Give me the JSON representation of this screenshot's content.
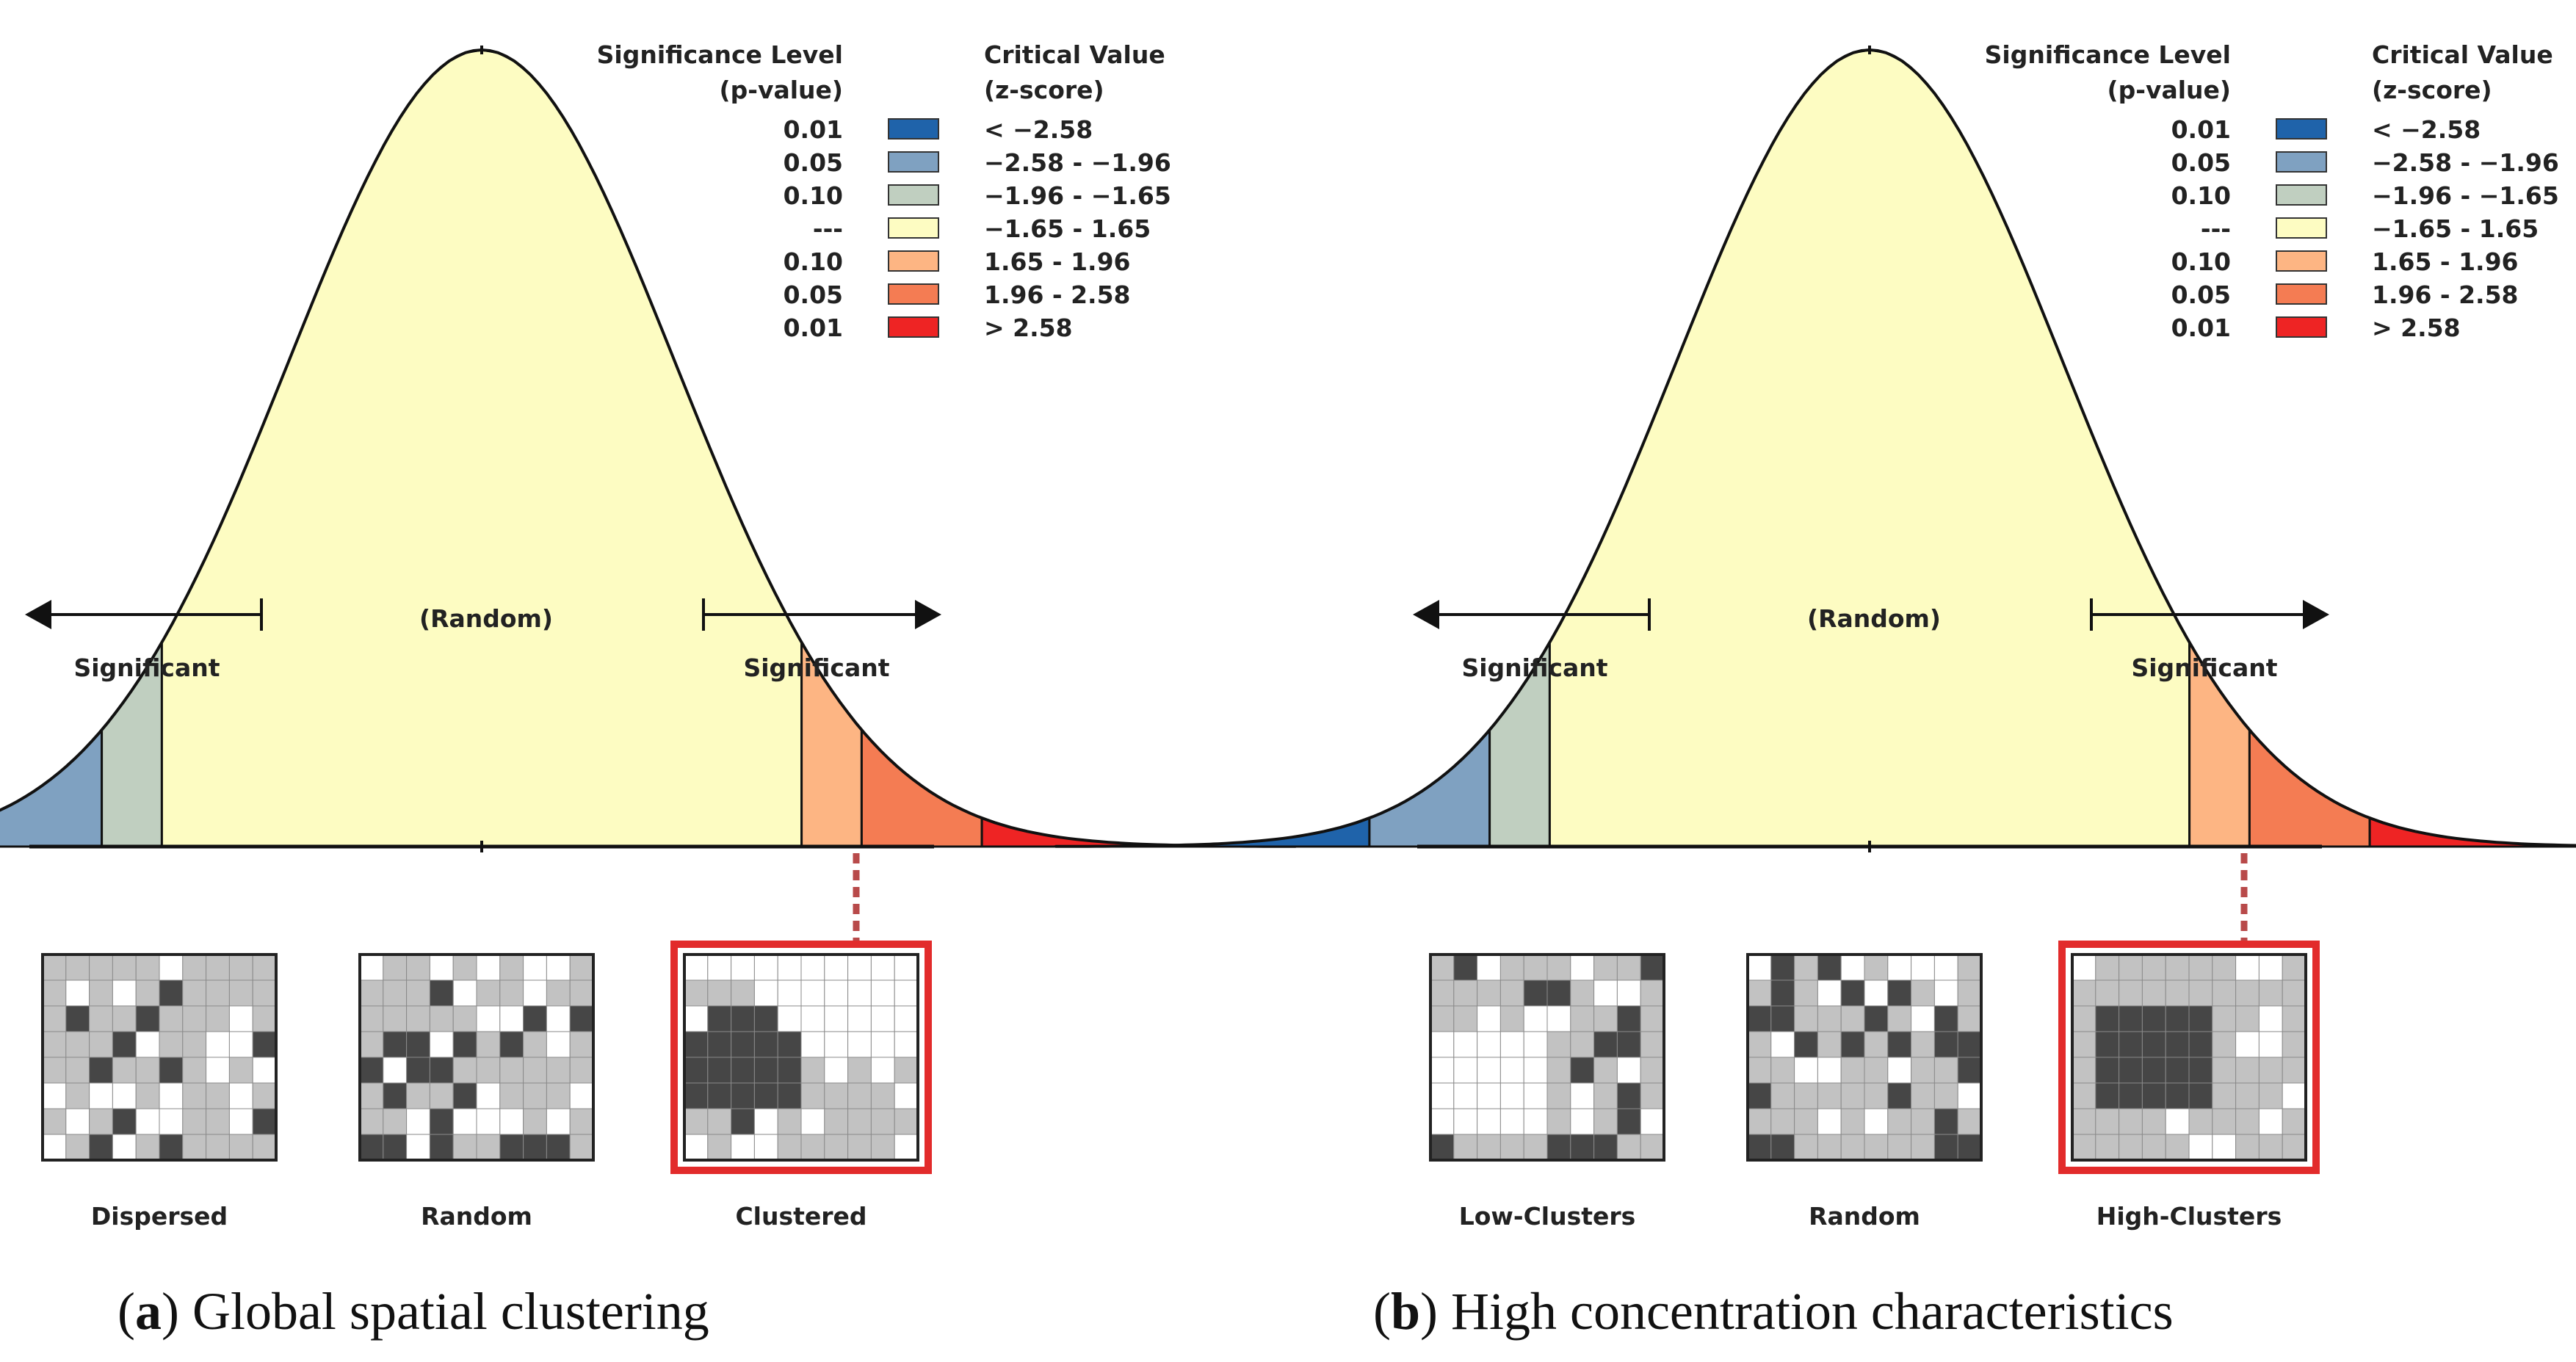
{
  "panels": [
    {
      "id": "a",
      "legend": {
        "p_header": [
          "Significance Level",
          "(p-value)"
        ],
        "z_header": [
          "Critical Value",
          "(z-score)"
        ],
        "rows": [
          {
            "p": "0.01",
            "color": "#1f63aa",
            "z": "< −2.58"
          },
          {
            "p": "0.05",
            "color": "#7fa1c1",
            "z": "−2.58 - −1.96"
          },
          {
            "p": "0.10",
            "color": "#c0cfc0",
            "z": "−1.96 - −1.65"
          },
          {
            "p": "---",
            "color": "#fdfcc2",
            "z": "−1.65 - 1.65"
          },
          {
            "p": "0.10",
            "color": "#fdb583",
            "z": "1.65 - 1.96"
          },
          {
            "p": "0.05",
            "color": "#f47c53",
            "z": "1.96 - 2.58"
          },
          {
            "p": "0.01",
            "color": "#ee2424",
            "z": "> 2.58"
          }
        ]
      },
      "random_label": "(Random)",
      "significant_left": "Significant",
      "significant_right": "Significant",
      "maps": [
        {
          "label": "Dispersed",
          "pattern": "dispersed",
          "highlight": false
        },
        {
          "label": "Random",
          "pattern": "random",
          "highlight": false
        },
        {
          "label": "Clustered",
          "pattern": "clustered",
          "highlight": true
        }
      ],
      "caption_letter": "a",
      "caption_text": "Global spatial clustering"
    },
    {
      "id": "b",
      "legend": {
        "p_header": [
          "Significance Level",
          "(p-value)"
        ],
        "z_header": [
          "Critical Value",
          "(z-score)"
        ],
        "rows": [
          {
            "p": "0.01",
            "color": "#1f63aa",
            "z": "< −2.58"
          },
          {
            "p": "0.05",
            "color": "#7fa1c1",
            "z": "−2.58 - −1.96"
          },
          {
            "p": "0.10",
            "color": "#c0cfc0",
            "z": "−1.96 - −1.65"
          },
          {
            "p": "---",
            "color": "#fdfcc2",
            "z": "−1.65 - 1.65"
          },
          {
            "p": "0.10",
            "color": "#fdb583",
            "z": "1.65 - 1.96"
          },
          {
            "p": "0.05",
            "color": "#f47c53",
            "z": "1.96 - 2.58"
          },
          {
            "p": "0.01",
            "color": "#ee2424",
            "z": "> 2.58"
          }
        ]
      },
      "random_label": "(Random)",
      "significant_left": "Significant",
      "significant_right": "Significant",
      "maps": [
        {
          "label": "Low-Clusters",
          "pattern": "lowclusters",
          "highlight": false
        },
        {
          "label": "Random",
          "pattern": "random",
          "highlight": false
        },
        {
          "label": "High-Clusters",
          "pattern": "highclusters",
          "highlight": true
        }
      ],
      "caption_letter": "b",
      "caption_text": "High concentration characteristics"
    }
  ],
  "colors": {
    "map_dark": "#464646",
    "map_light": "#c2c2c2",
    "map_white": "#ffffff",
    "map_border": "#222222",
    "highlight": "#e22b2b",
    "outline": "#111111"
  },
  "z_breaks": [
    -2.58,
    -1.96,
    -1.65,
    1.65,
    1.96,
    2.58
  ],
  "z_range": [
    -4.2,
    4.2
  ]
}
